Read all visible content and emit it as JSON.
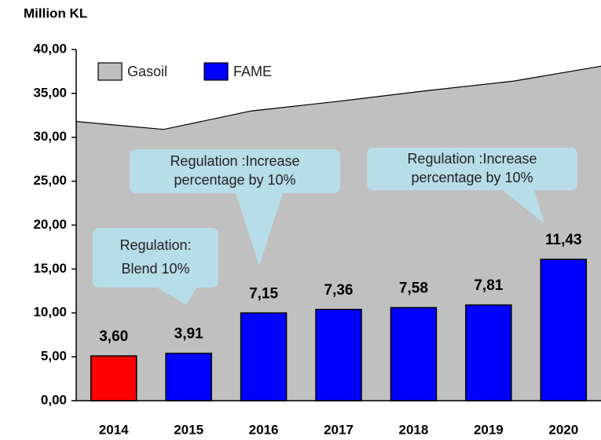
{
  "chart_data": {
    "type": "bar_area",
    "y_axis_title": "Million KL",
    "categories": [
      "2014",
      "2015",
      "2016",
      "2017",
      "2018",
      "2019",
      "2020"
    ],
    "series": [
      {
        "name": "Gasoil",
        "color": "#c0c0c0",
        "values": [
          31.8,
          30.9,
          33.0,
          34.1,
          35.3,
          36.4,
          38.1
        ]
      },
      {
        "name": "FAME",
        "color": "#0000ff",
        "colors": [
          "#ff0000",
          "#0000ff",
          "#0000ff",
          "#0000ff",
          "#0000ff",
          "#0000ff",
          "#0000ff"
        ],
        "values": [
          5.1,
          5.4,
          10.0,
          10.4,
          10.6,
          10.9,
          16.1
        ]
      }
    ],
    "bar_labels": [
      "3,60",
      "3,91",
      "7,15",
      "7,36",
      "7,58",
      "7,81",
      "11,43"
    ],
    "ylim": [
      0,
      40
    ],
    "yticks": [
      {
        "value": 0,
        "label": "0,00"
      },
      {
        "value": 5,
        "label": "5,00"
      },
      {
        "value": 10,
        "label": "10,00"
      },
      {
        "value": 15,
        "label": "15,00"
      },
      {
        "value": 20,
        "label": "20,00"
      },
      {
        "value": 25,
        "label": "25,00"
      },
      {
        "value": 30,
        "label": "30,00"
      },
      {
        "value": 35,
        "label": "35,00"
      },
      {
        "value": 40,
        "label": "40,00"
      }
    ],
    "annotations": [
      {
        "lines": [
          "Regulation:",
          "Blend 10%"
        ]
      },
      {
        "lines": [
          "Regulation :Increase",
          "percentage by 10%"
        ]
      },
      {
        "lines": [
          "Regulation :Increase",
          "percentage by 10%"
        ]
      }
    ]
  }
}
